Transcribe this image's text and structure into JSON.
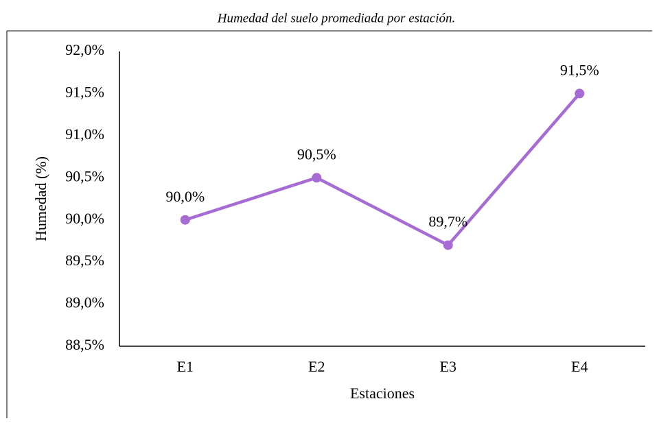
{
  "chart_data": {
    "type": "line",
    "title": "Humedad del suelo promediada por estación.",
    "x_label": "Estaciones",
    "y_label": "Humedad (%)",
    "categories": [
      "E1",
      "E2",
      "E3",
      "E4"
    ],
    "series": [
      {
        "name": "Humedad",
        "color": "#a66cd4",
        "values": [
          90.0,
          90.5,
          89.7,
          91.5
        ],
        "value_labels": [
          "90,0%",
          "90,5%",
          "89,7%",
          "91,5%"
        ]
      }
    ],
    "ylim": [
      88.5,
      92.0
    ],
    "yticks": [
      {
        "value": 88.5,
        "label": "88,5%"
      },
      {
        "value": 89.0,
        "label": "89,0%"
      },
      {
        "value": 89.5,
        "label": "89,5%"
      },
      {
        "value": 90.0,
        "label": "90,0%"
      },
      {
        "value": 90.5,
        "label": "90,5%"
      },
      {
        "value": 91.0,
        "label": "91,0%"
      },
      {
        "value": 91.5,
        "label": "91,5%"
      },
      {
        "value": 92.0,
        "label": "92,0%"
      }
    ],
    "grid": false
  }
}
